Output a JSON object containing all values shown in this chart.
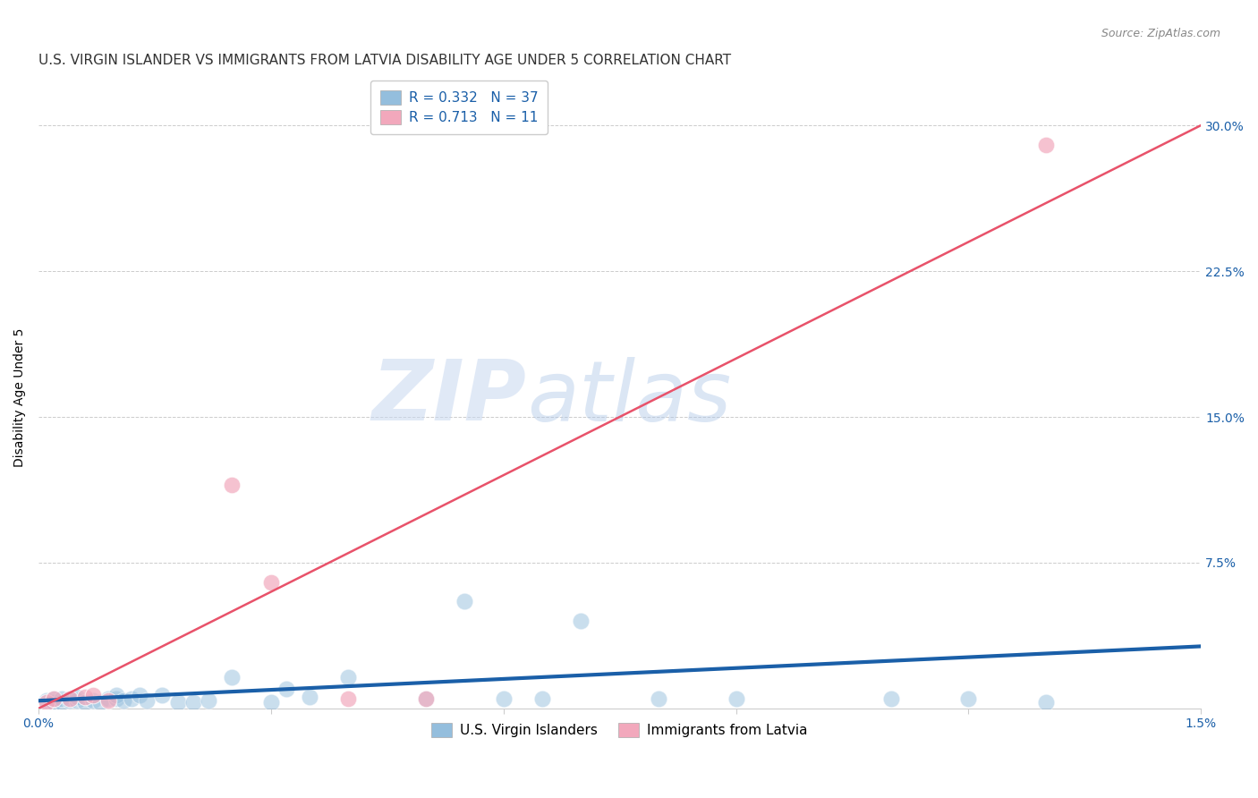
{
  "title": "U.S. VIRGIN ISLANDER VS IMMIGRANTS FROM LATVIA DISABILITY AGE UNDER 5 CORRELATION CHART",
  "source": "Source: ZipAtlas.com",
  "ylabel": "Disability Age Under 5",
  "xlim": [
    0.0,
    0.015
  ],
  "ylim": [
    0.0,
    0.32
  ],
  "xticks": [
    0.0,
    0.003,
    0.006,
    0.009,
    0.012,
    0.015
  ],
  "xtick_labels": [
    "0.0%",
    "",
    "",
    "",
    "",
    "1.5%"
  ],
  "yticks_right": [
    0.075,
    0.15,
    0.225,
    0.3
  ],
  "ytick_labels_right": [
    "7.5%",
    "15.0%",
    "22.5%",
    "30.0%"
  ],
  "watermark_zip": "ZIP",
  "watermark_atlas": "atlas",
  "legend_label_blue": "R = 0.332   N = 37",
  "legend_label_pink": "R = 0.713   N = 11",
  "legend_bottom_blue": "U.S. Virgin Islanders",
  "legend_bottom_pink": "Immigrants from Latvia",
  "blue_scatter_x": [
    0.0001,
    0.0002,
    0.0002,
    0.0003,
    0.0003,
    0.0004,
    0.0005,
    0.0005,
    0.0006,
    0.0007,
    0.0008,
    0.0009,
    0.001,
    0.001,
    0.0011,
    0.0012,
    0.0013,
    0.0014,
    0.0016,
    0.0018,
    0.002,
    0.0022,
    0.0025,
    0.003,
    0.0032,
    0.0035,
    0.004,
    0.005,
    0.0055,
    0.006,
    0.0065,
    0.007,
    0.008,
    0.009,
    0.011,
    0.012,
    0.013
  ],
  "blue_scatter_y": [
    0.004,
    0.003,
    0.005,
    0.003,
    0.005,
    0.004,
    0.004,
    0.006,
    0.003,
    0.004,
    0.003,
    0.005,
    0.005,
    0.007,
    0.004,
    0.005,
    0.007,
    0.004,
    0.007,
    0.003,
    0.003,
    0.004,
    0.016,
    0.003,
    0.01,
    0.006,
    0.016,
    0.005,
    0.055,
    0.005,
    0.005,
    0.045,
    0.005,
    0.005,
    0.005,
    0.005,
    0.003
  ],
  "pink_scatter_x": [
    0.0001,
    0.0002,
    0.0004,
    0.0006,
    0.0007,
    0.0009,
    0.0025,
    0.003,
    0.004,
    0.005,
    0.013
  ],
  "pink_scatter_y": [
    0.003,
    0.005,
    0.005,
    0.006,
    0.007,
    0.004,
    0.115,
    0.065,
    0.005,
    0.005,
    0.29
  ],
  "blue_line_x": [
    0.0,
    0.015
  ],
  "blue_line_y": [
    0.004,
    0.032
  ],
  "pink_line_x": [
    0.0,
    0.015
  ],
  "pink_line_y": [
    0.0,
    0.3
  ],
  "scatter_size": 180,
  "blue_color": "#94bedd",
  "pink_color": "#f2a8bc",
  "blue_line_color": "#1a5fa8",
  "pink_line_color": "#e8526a",
  "title_fontsize": 11,
  "axis_label_fontsize": 10,
  "tick_fontsize": 10,
  "background_color": "#ffffff",
  "grid_color": "#cccccc"
}
